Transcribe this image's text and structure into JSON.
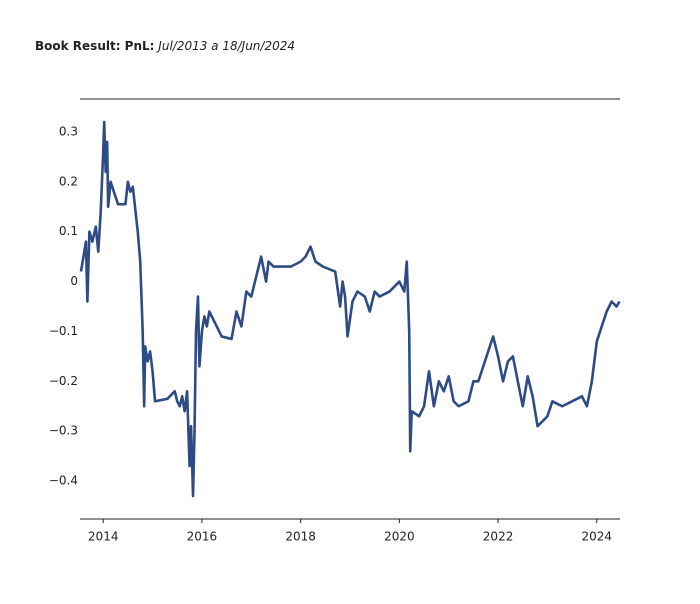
{
  "chart_data": {
    "type": "line",
    "title": "Book Result: PnL:",
    "subtitle": "Jul/2013 a 18/Jun/2024",
    "x": [
      2013.55,
      2013.6,
      2013.65,
      2013.68,
      2013.72,
      2013.78,
      2013.85,
      2013.9,
      2013.95,
      2014.0,
      2014.02,
      2014.05,
      2014.08,
      2014.1,
      2014.15,
      2014.25,
      2014.3,
      2014.45,
      2014.5,
      2014.55,
      2014.6,
      2014.7,
      2014.75,
      2014.8,
      2014.83,
      2014.85,
      2014.9,
      2014.95,
      2015.0,
      2015.05,
      2015.3,
      2015.45,
      2015.5,
      2015.55,
      2015.6,
      2015.65,
      2015.7,
      2015.75,
      2015.78,
      2015.82,
      2015.85,
      2015.88,
      2015.92,
      2015.95,
      2016.0,
      2016.05,
      2016.1,
      2016.15,
      2016.3,
      2016.4,
      2016.6,
      2016.7,
      2016.8,
      2016.9,
      2017.0,
      2017.05,
      2017.15,
      2017.2,
      2017.3,
      2017.35,
      2017.45,
      2017.6,
      2017.8,
      2018.0,
      2018.1,
      2018.2,
      2018.3,
      2018.45,
      2018.7,
      2018.8,
      2018.85,
      2018.9,
      2018.95,
      2019.05,
      2019.15,
      2019.3,
      2019.4,
      2019.5,
      2019.6,
      2019.8,
      2019.9,
      2020.0,
      2020.1,
      2020.15,
      2020.2,
      2020.22,
      2020.25,
      2020.4,
      2020.5,
      2020.6,
      2020.7,
      2020.8,
      2020.9,
      2021.0,
      2021.1,
      2021.2,
      2021.4,
      2021.5,
      2021.6,
      2021.7,
      2021.8,
      2021.9,
      2022.0,
      2022.1,
      2022.2,
      2022.3,
      2022.4,
      2022.5,
      2022.6,
      2022.7,
      2022.8,
      2022.9,
      2023.0,
      2023.1,
      2023.3,
      2023.5,
      2023.7,
      2023.8,
      2023.9,
      2024.0,
      2024.1,
      2024.2,
      2024.3,
      2024.4,
      2024.46
    ],
    "series": [
      {
        "name": "PnL",
        "color": "#2f4b85",
        "values": [
          0.02,
          0.05,
          0.08,
          -0.04,
          0.1,
          0.08,
          0.11,
          0.06,
          0.14,
          0.26,
          0.32,
          0.22,
          0.28,
          0.15,
          0.2,
          0.17,
          0.155,
          0.155,
          0.2,
          0.18,
          0.19,
          0.1,
          0.04,
          -0.1,
          -0.25,
          -0.13,
          -0.16,
          -0.14,
          -0.18,
          -0.24,
          -0.235,
          -0.22,
          -0.24,
          -0.25,
          -0.23,
          -0.26,
          -0.22,
          -0.37,
          -0.29,
          -0.43,
          -0.3,
          -0.1,
          -0.03,
          -0.17,
          -0.1,
          -0.07,
          -0.09,
          -0.06,
          -0.09,
          -0.11,
          -0.115,
          -0.06,
          -0.09,
          -0.02,
          -0.03,
          -0.01,
          0.03,
          0.05,
          0.0,
          0.04,
          0.03,
          0.03,
          0.03,
          0.04,
          0.05,
          0.07,
          0.04,
          0.03,
          0.02,
          -0.05,
          0.0,
          -0.03,
          -0.11,
          -0.04,
          -0.02,
          -0.03,
          -0.06,
          -0.02,
          -0.03,
          -0.02,
          -0.01,
          0.0,
          -0.02,
          0.04,
          -0.1,
          -0.34,
          -0.26,
          -0.27,
          -0.25,
          -0.18,
          -0.25,
          -0.2,
          -0.22,
          -0.19,
          -0.24,
          -0.25,
          -0.24,
          -0.2,
          -0.2,
          -0.17,
          -0.14,
          -0.11,
          -0.15,
          -0.2,
          -0.16,
          -0.15,
          -0.2,
          -0.25,
          -0.19,
          -0.23,
          -0.29,
          -0.28,
          -0.27,
          -0.24,
          -0.25,
          -0.24,
          -0.23,
          -0.25,
          -0.2,
          -0.12,
          -0.09,
          -0.06,
          -0.04,
          -0.05,
          -0.04
        ]
      }
    ],
    "xlim": [
      2013.53,
      2024.47
    ],
    "xticks": [
      2014,
      2016,
      2018,
      2020,
      2022,
      2024
    ],
    "ylim": [
      -0.476,
      0.366
    ],
    "yticks": [
      {
        "value": -0.4,
        "label": "−0.4"
      },
      {
        "value": -0.3,
        "label": "−0.3"
      },
      {
        "value": -0.2,
        "label": "−0.2"
      },
      {
        "value": -0.1,
        "label": "−0.1"
      },
      0,
      0.1,
      0.2,
      0.3
    ],
    "grid": false
  }
}
